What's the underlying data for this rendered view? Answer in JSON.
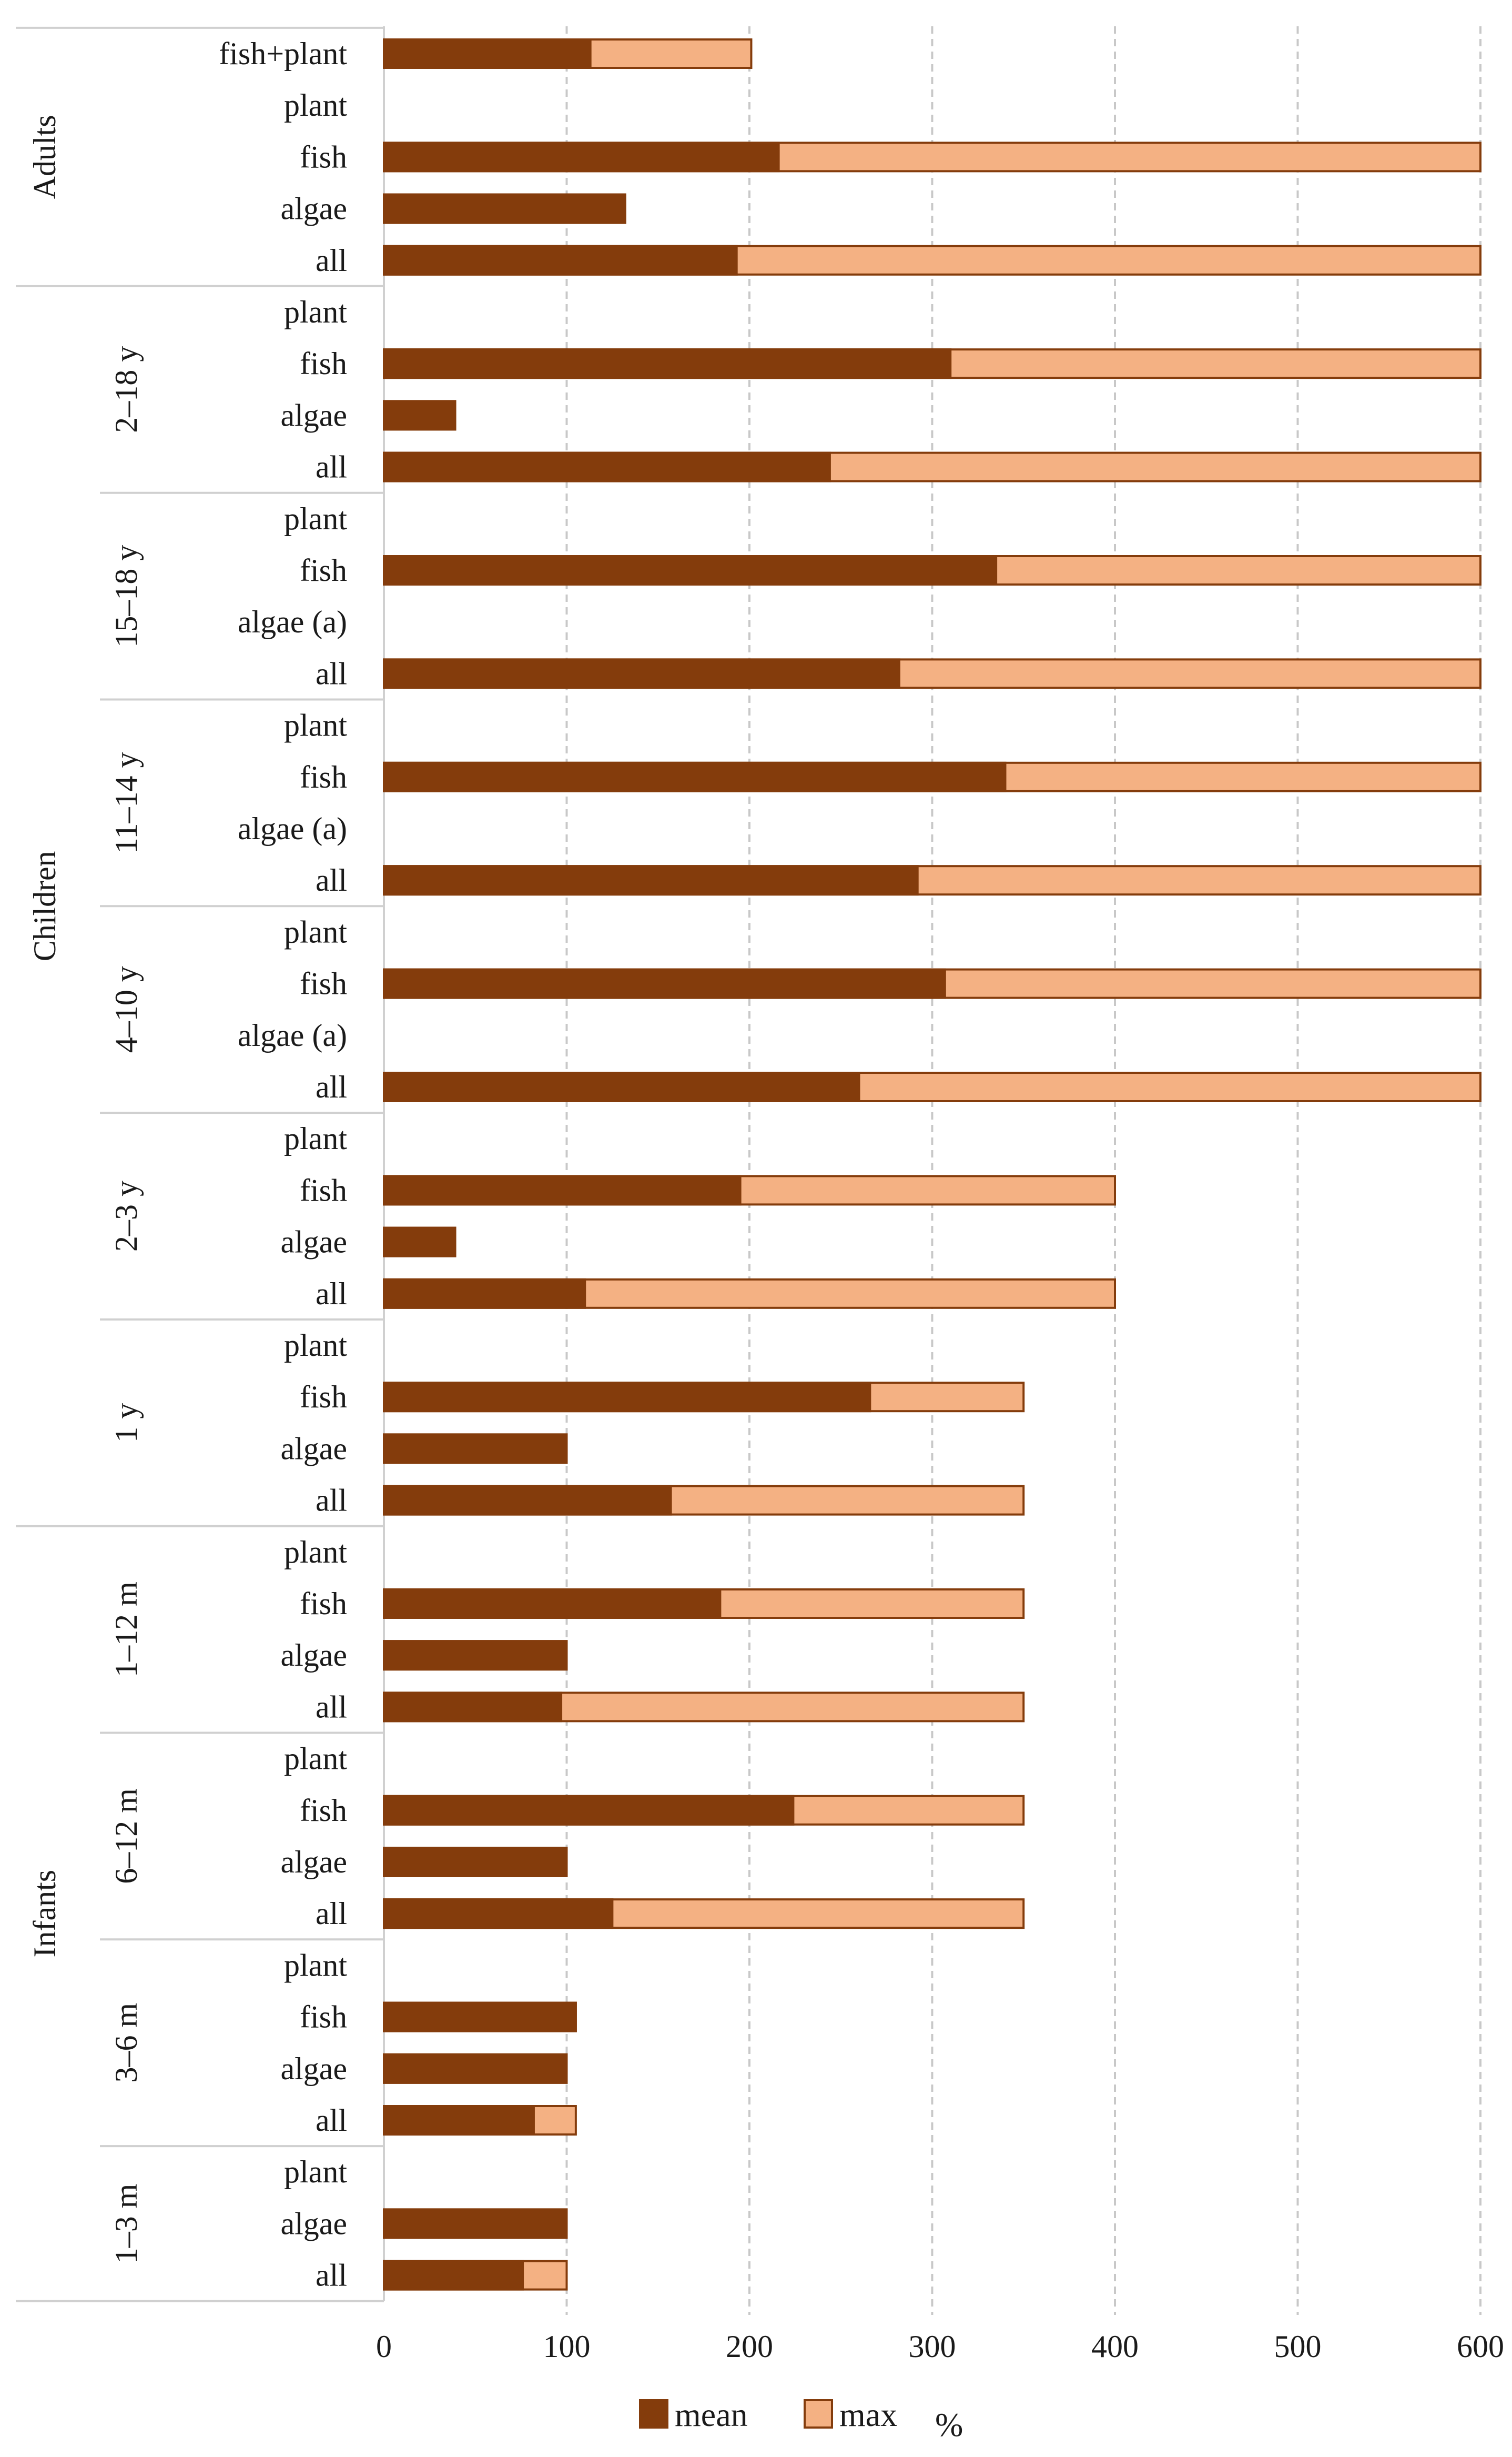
{
  "chart_data": {
    "type": "bar",
    "orientation": "horizontal",
    "stacked": true,
    "unit": "%",
    "xlim": [
      0,
      600
    ],
    "xticks": [
      0,
      100,
      200,
      300,
      400,
      500,
      600
    ],
    "grid": "vertical dashed",
    "colors": {
      "mean": "#843C0C",
      "max": "#F4B183",
      "edge": "#843C0C"
    },
    "legend": {
      "position": "bottom",
      "entries": [
        "mean",
        "max"
      ]
    },
    "series_note": "Bars show mean value (dark segment) and maximum value (light segment extends from 0 to max).",
    "top_groups": [
      {
        "name": "Adults",
        "subgroups": [
          {
            "name": "",
            "items": [
              {
                "label": "fish+plant",
                "mean": 113,
                "max": 201
              },
              {
                "label": "plant",
                "mean": null,
                "max": null
              },
              {
                "label": "fish",
                "mean": 216,
                "max": 600
              },
              {
                "label": "algae",
                "mean": 132,
                "max": 132
              },
              {
                "label": "all",
                "mean": 193,
                "max": 600
              }
            ]
          }
        ]
      },
      {
        "name": "Children",
        "subgroups": [
          {
            "name": "2–18 y",
            "items": [
              {
                "label": "plant",
                "mean": null,
                "max": null
              },
              {
                "label": "fish",
                "mean": 310,
                "max": 600
              },
              {
                "label": "algae",
                "mean": 39,
                "max": 39
              },
              {
                "label": "all",
                "mean": 244,
                "max": 600
              }
            ]
          },
          {
            "name": "15–18 y",
            "items": [
              {
                "label": "plant",
                "mean": null,
                "max": null
              },
              {
                "label": "fish",
                "mean": 335,
                "max": 600
              },
              {
                "label": "algae (a)",
                "mean": null,
                "max": null
              },
              {
                "label": "all",
                "mean": 282,
                "max": 600
              }
            ]
          },
          {
            "name": "11–14 y",
            "items": [
              {
                "label": "plant",
                "mean": null,
                "max": null
              },
              {
                "label": "fish",
                "mean": 340,
                "max": 600
              },
              {
                "label": "algae (a)",
                "mean": null,
                "max": null
              },
              {
                "label": "all",
                "mean": 292,
                "max": 600
              }
            ]
          },
          {
            "name": "4–10 y",
            "items": [
              {
                "label": "plant",
                "mean": null,
                "max": null
              },
              {
                "label": "fish",
                "mean": 307,
                "max": 600
              },
              {
                "label": "algae (a)",
                "mean": null,
                "max": null
              },
              {
                "label": "all",
                "mean": 260,
                "max": 600
              }
            ]
          },
          {
            "name": "2–3 y",
            "items": [
              {
                "label": "plant",
                "mean": null,
                "max": null
              },
              {
                "label": "fish",
                "mean": 195,
                "max": 400
              },
              {
                "label": "algae",
                "mean": 39,
                "max": 39
              },
              {
                "label": "all",
                "mean": 110,
                "max": 400
              }
            ]
          },
          {
            "name": "1 y",
            "items": [
              {
                "label": "plant",
                "mean": null,
                "max": null
              },
              {
                "label": "fish",
                "mean": 266,
                "max": 350
              },
              {
                "label": "algae",
                "mean": 100,
                "max": 100
              },
              {
                "label": "all",
                "mean": 157,
                "max": 350
              }
            ]
          }
        ]
      },
      {
        "name": "Infants",
        "subgroups": [
          {
            "name": "1–12 m",
            "items": [
              {
                "label": "plant",
                "mean": null,
                "max": null
              },
              {
                "label": "fish",
                "mean": 184,
                "max": 350
              },
              {
                "label": "algae",
                "mean": 100,
                "max": 100
              },
              {
                "label": "all",
                "mean": 97,
                "max": 350
              }
            ]
          },
          {
            "name": "6–12 m",
            "items": [
              {
                "label": "plant",
                "mean": null,
                "max": null
              },
              {
                "label": "fish",
                "mean": 224,
                "max": 350
              },
              {
                "label": "algae",
                "mean": 100,
                "max": 100
              },
              {
                "label": "all",
                "mean": 125,
                "max": 350
              }
            ]
          },
          {
            "name": "3–6 m",
            "items": [
              {
                "label": "plant",
                "mean": null,
                "max": null
              },
              {
                "label": "fish",
                "mean": 105,
                "max": 105
              },
              {
                "label": "algae",
                "mean": 100,
                "max": 100
              },
              {
                "label": "all",
                "mean": 82,
                "max": 105
              }
            ]
          },
          {
            "name": "1–3 m",
            "items": [
              {
                "label": "plant",
                "mean": null,
                "max": null
              },
              {
                "label": "algae",
                "mean": 100,
                "max": 100
              },
              {
                "label": "all",
                "mean": 76,
                "max": 100
              }
            ]
          }
        ]
      }
    ]
  }
}
